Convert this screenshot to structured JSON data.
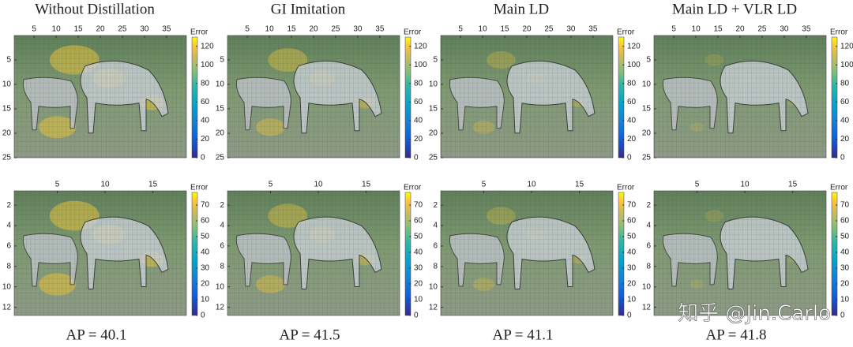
{
  "columns": [
    {
      "title": "Without Distillation",
      "ap": "AP = 40.1"
    },
    {
      "title": "GI Imitation",
      "ap": "AP = 41.5"
    },
    {
      "title": "Main LD",
      "ap": "AP = 41.1"
    },
    {
      "title": "Main LD + VLR LD",
      "ap": "AP = 41.8"
    }
  ],
  "rows": [
    {
      "xticks": [
        5,
        10,
        15,
        20,
        25,
        30,
        35
      ],
      "xlim": [
        0.5,
        39.5
      ],
      "yticks": [
        5,
        10,
        15,
        20,
        25
      ],
      "ylim": [
        0,
        25
      ],
      "colorbar": {
        "label": "Error",
        "ticks": [
          0,
          20,
          40,
          60,
          80,
          100,
          120
        ],
        "lim": [
          0,
          130
        ]
      }
    },
    {
      "xticks": [
        5,
        10,
        15
      ],
      "xlim": [
        0.5,
        18.5
      ],
      "yticks": [
        2,
        4,
        6,
        8,
        10,
        12
      ],
      "ylim": [
        0.6,
        12.8
      ],
      "colorbar": {
        "label": "Error",
        "ticks": [
          0,
          10,
          20,
          30,
          40,
          50,
          60,
          70
        ],
        "lim": [
          0,
          78
        ]
      }
    }
  ],
  "watermark": "知乎 @Jin.Carlo"
}
